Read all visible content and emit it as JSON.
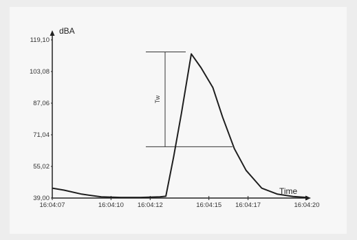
{
  "chart_data": {
    "type": "line",
    "title": "",
    "xlabel": "Time",
    "ylabel": "dBA",
    "y_ticks": [
      "39,00",
      "55,02",
      "71,04",
      "87,06",
      "103,08",
      "119,10"
    ],
    "y_tick_values": [
      39.0,
      55.02,
      71.04,
      87.06,
      103.08,
      119.1
    ],
    "x_ticks": [
      "16:04:07",
      "16:04:10",
      "16:04:12",
      "16:04:15",
      "16:04:17",
      "16:04:20"
    ],
    "xlim_seconds_label": [
      "16:04:07",
      "16:04:20"
    ],
    "ylim": [
      39.0,
      119.1
    ],
    "grid": false,
    "legend": "none",
    "annotation": {
      "label": "Tw",
      "upper_level": 113.0,
      "lower_level": 65.0
    },
    "series": [
      {
        "x": [
          "16:04:07.0",
          "16:04:07.6",
          "16:04:08.5",
          "16:04:09.5",
          "16:04:10.5",
          "16:04:11.5",
          "16:04:12.5",
          "16:04:12.8",
          "16:04:13.2",
          "16:04:13.6",
          "16:04:14.1",
          "16:04:14.6",
          "16:04:15.2",
          "16:04:15.7",
          "16:04:16.3",
          "16:04:16.9",
          "16:04:17.7",
          "16:04:18.5",
          "16:04:19.3",
          "16:04:20.0"
        ],
        "y": [
          44.0,
          43.0,
          41.0,
          39.6,
          39.3,
          39.3,
          39.6,
          39.9,
          60.0,
          82.0,
          112.0,
          105.0,
          95.0,
          80.0,
          64.0,
          53.0,
          44.0,
          41.0,
          39.8,
          39.3
        ]
      }
    ]
  }
}
